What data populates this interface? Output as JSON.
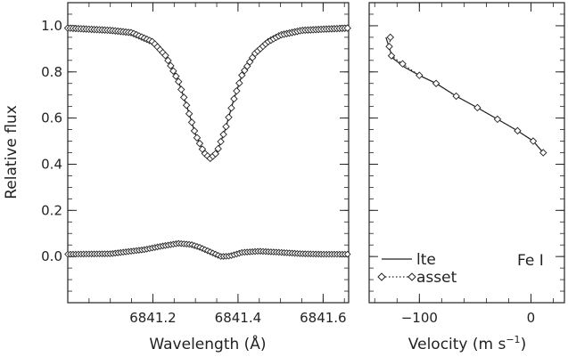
{
  "chart_data": [
    {
      "type": "line",
      "xlabel": "Wavelength (Å)",
      "ylabel": "Relative flux",
      "xlim": [
        6841.0,
        6841.66
      ],
      "ylim": [
        -0.2,
        1.1
      ],
      "xticks": [
        6841.2,
        6841.4,
        6841.6
      ],
      "xtick_labels": [
        "6841.2",
        "6841.4",
        "6841.6"
      ],
      "yticks": [
        0.0,
        0.2,
        0.4,
        0.6,
        0.8,
        1.0
      ],
      "ytick_labels": [
        "0.0",
        "0.2",
        "0.4",
        "0.6",
        "0.8",
        "1.0"
      ],
      "profile_x": [
        6841.0,
        6841.05,
        6841.1,
        6841.15,
        6841.2,
        6841.23,
        6841.26,
        6841.28,
        6841.3,
        6841.32,
        6841.335,
        6841.35,
        6841.37,
        6841.39,
        6841.41,
        6841.44,
        6841.47,
        6841.5,
        6841.55,
        6841.6,
        6841.66
      ],
      "profile_y": [
        0.99,
        0.985,
        0.98,
        0.97,
        0.93,
        0.87,
        0.76,
        0.65,
        0.53,
        0.45,
        0.425,
        0.45,
        0.55,
        0.68,
        0.79,
        0.88,
        0.93,
        0.96,
        0.98,
        0.985,
        0.99
      ],
      "series": [
        {
          "style": "solid",
          "x": [
            6841.0,
            6841.05,
            6841.1,
            6841.15,
            6841.2,
            6841.23,
            6841.26,
            6841.28,
            6841.3,
            6841.32,
            6841.335,
            6841.35,
            6841.37,
            6841.39,
            6841.41,
            6841.44,
            6841.47,
            6841.5,
            6841.55,
            6841.6,
            6841.66
          ],
          "y": [
            0.99,
            0.985,
            0.98,
            0.97,
            0.93,
            0.87,
            0.76,
            0.65,
            0.53,
            0.45,
            0.425,
            0.45,
            0.55,
            0.68,
            0.79,
            0.88,
            0.93,
            0.96,
            0.98,
            0.985,
            0.99
          ]
        },
        {
          "style": "diamond-markers",
          "x": [
            6841.0,
            6841.05,
            6841.1,
            6841.15,
            6841.2,
            6841.23,
            6841.26,
            6841.28,
            6841.3,
            6841.32,
            6841.335,
            6841.35,
            6841.37,
            6841.39,
            6841.41,
            6841.44,
            6841.47,
            6841.5,
            6841.55,
            6841.6,
            6841.66
          ],
          "y": [
            0.99,
            0.985,
            0.98,
            0.97,
            0.93,
            0.87,
            0.76,
            0.65,
            0.53,
            0.45,
            0.425,
            0.45,
            0.55,
            0.68,
            0.79,
            0.88,
            0.93,
            0.96,
            0.98,
            0.985,
            0.99
          ]
        },
        {
          "style": "diamond-markers",
          "x": [
            6841.0,
            6841.1,
            6841.18,
            6841.22,
            6841.26,
            6841.29,
            6841.31,
            6841.335,
            6841.36,
            6841.38,
            6841.41,
            6841.45,
            6841.5,
            6841.55,
            6841.6,
            6841.66
          ],
          "y": [
            0.01,
            0.012,
            0.03,
            0.045,
            0.057,
            0.052,
            0.04,
            0.02,
            0.0,
            0.002,
            0.018,
            0.023,
            0.018,
            0.012,
            0.01,
            0.01
          ]
        }
      ]
    },
    {
      "type": "line",
      "xlabel": "Velocity (m s",
      "xlabel_exponent": "−1",
      "xlabel_close": ")",
      "xlim": [
        -145,
        30
      ],
      "ylim": [
        -0.2,
        1.1
      ],
      "xticks": [
        -100,
        0
      ],
      "xtick_labels": [
        "−100",
        "0"
      ],
      "legend_position": "bottom-left",
      "annotation": "Fe I",
      "series": [
        {
          "name": "lte",
          "style": "solid",
          "y": [
            0.95,
            0.86,
            0.82,
            0.785,
            0.75,
            0.695,
            0.645,
            0.595,
            0.545,
            0.5,
            0.45
          ],
          "x": [
            -130,
            -124,
            -113,
            -100,
            -85,
            -67,
            -48,
            -30,
            -12,
            2,
            11
          ]
        },
        {
          "name": "asset",
          "style": "dotted-diamonds",
          "y": [
            0.95,
            0.91,
            0.87,
            0.835,
            0.785,
            0.75,
            0.695,
            0.645,
            0.595,
            0.545,
            0.5,
            0.45
          ],
          "x": [
            -126,
            -127,
            -125,
            -115,
            -100,
            -85,
            -67,
            -48,
            -30,
            -12,
            2,
            11
          ]
        }
      ]
    }
  ]
}
